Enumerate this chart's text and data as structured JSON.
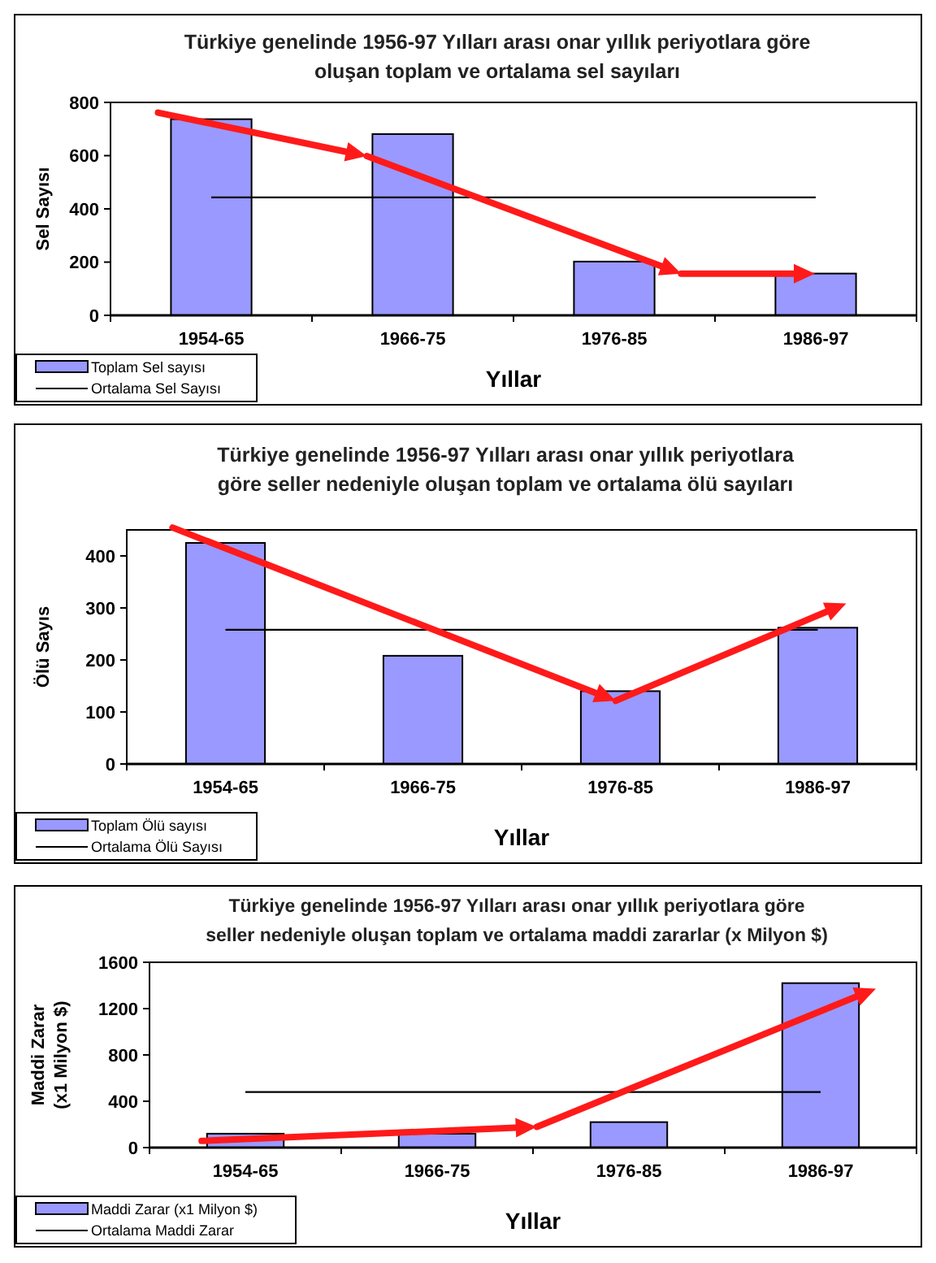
{
  "chart_data": [
    {
      "type": "bar",
      "title": "Türkiye genelinde 1956-97 Yılları arası onar yıllık periyotlara göre oluşan toplam ve ortalama sel sayıları",
      "xlabel": "Yıllar",
      "ylabel": "Sel Sayısı",
      "categories": [
        "1954-65",
        "1966-75",
        "1976-85",
        "1986-97"
      ],
      "series": [
        {
          "name": "Toplam Sel sayısı",
          "type": "bar",
          "color": "#9999ff",
          "values": [
            737,
            681,
            202,
            157
          ]
        },
        {
          "name": "Ortalama Sel Sayısı",
          "type": "line",
          "color": "#000000",
          "values": [
            443,
            443,
            443,
            443
          ]
        }
      ],
      "ylim": [
        0,
        800
      ],
      "yticks": [
        0,
        200,
        400,
        600,
        800
      ],
      "legend": "bottom left"
    },
    {
      "type": "bar",
      "title": "Türkiye genelinde 1956-97 Yılları arası onar yıllık periyotlara göre seller nedeniyle oluşan toplam ve ortalama ölü sayıları",
      "xlabel": "Yıllar",
      "ylabel": "Ölü Sayıs",
      "categories": [
        "1954-65",
        "1966-75",
        "1976-85",
        "1986-97"
      ],
      "series": [
        {
          "name": "Toplam Ölü sayısı",
          "type": "bar",
          "color": "#9999ff",
          "values": [
            425,
            208,
            140,
            262
          ]
        },
        {
          "name": "Ortalama Ölü Sayısı",
          "type": "line",
          "color": "#000000",
          "values": [
            258,
            258,
            258,
            258
          ]
        }
      ],
      "ylim": [
        0,
        450
      ],
      "yticks": [
        0,
        100,
        200,
        300,
        400
      ],
      "legend": "bottom left"
    },
    {
      "type": "bar",
      "title": "Türkiye genelinde 1956-97 Yılları arası onar yıllık periyotlara göre seller nedeniyle oluşan toplam ve ortalama maddi zararlar (x Milyon $)",
      "xlabel": "Yıllar",
      "ylabel": "Maddi Zarar (x1 Milyon $)",
      "categories": [
        "1954-65",
        "1966-75",
        "1976-85",
        "1986-97"
      ],
      "series": [
        {
          "name": "Maddi Zarar (x1 Milyon $)",
          "type": "bar",
          "color": "#9999ff",
          "values": [
            120,
            120,
            220,
            1420
          ]
        },
        {
          "name": "Ortalama Maddi Zarar",
          "type": "line",
          "color": "#000000",
          "values": [
            480,
            480,
            480,
            480
          ]
        }
      ],
      "ylim": [
        0,
        1600
      ],
      "yticks": [
        0,
        400,
        800,
        1200,
        1600
      ],
      "legend": "bottom left"
    }
  ]
}
